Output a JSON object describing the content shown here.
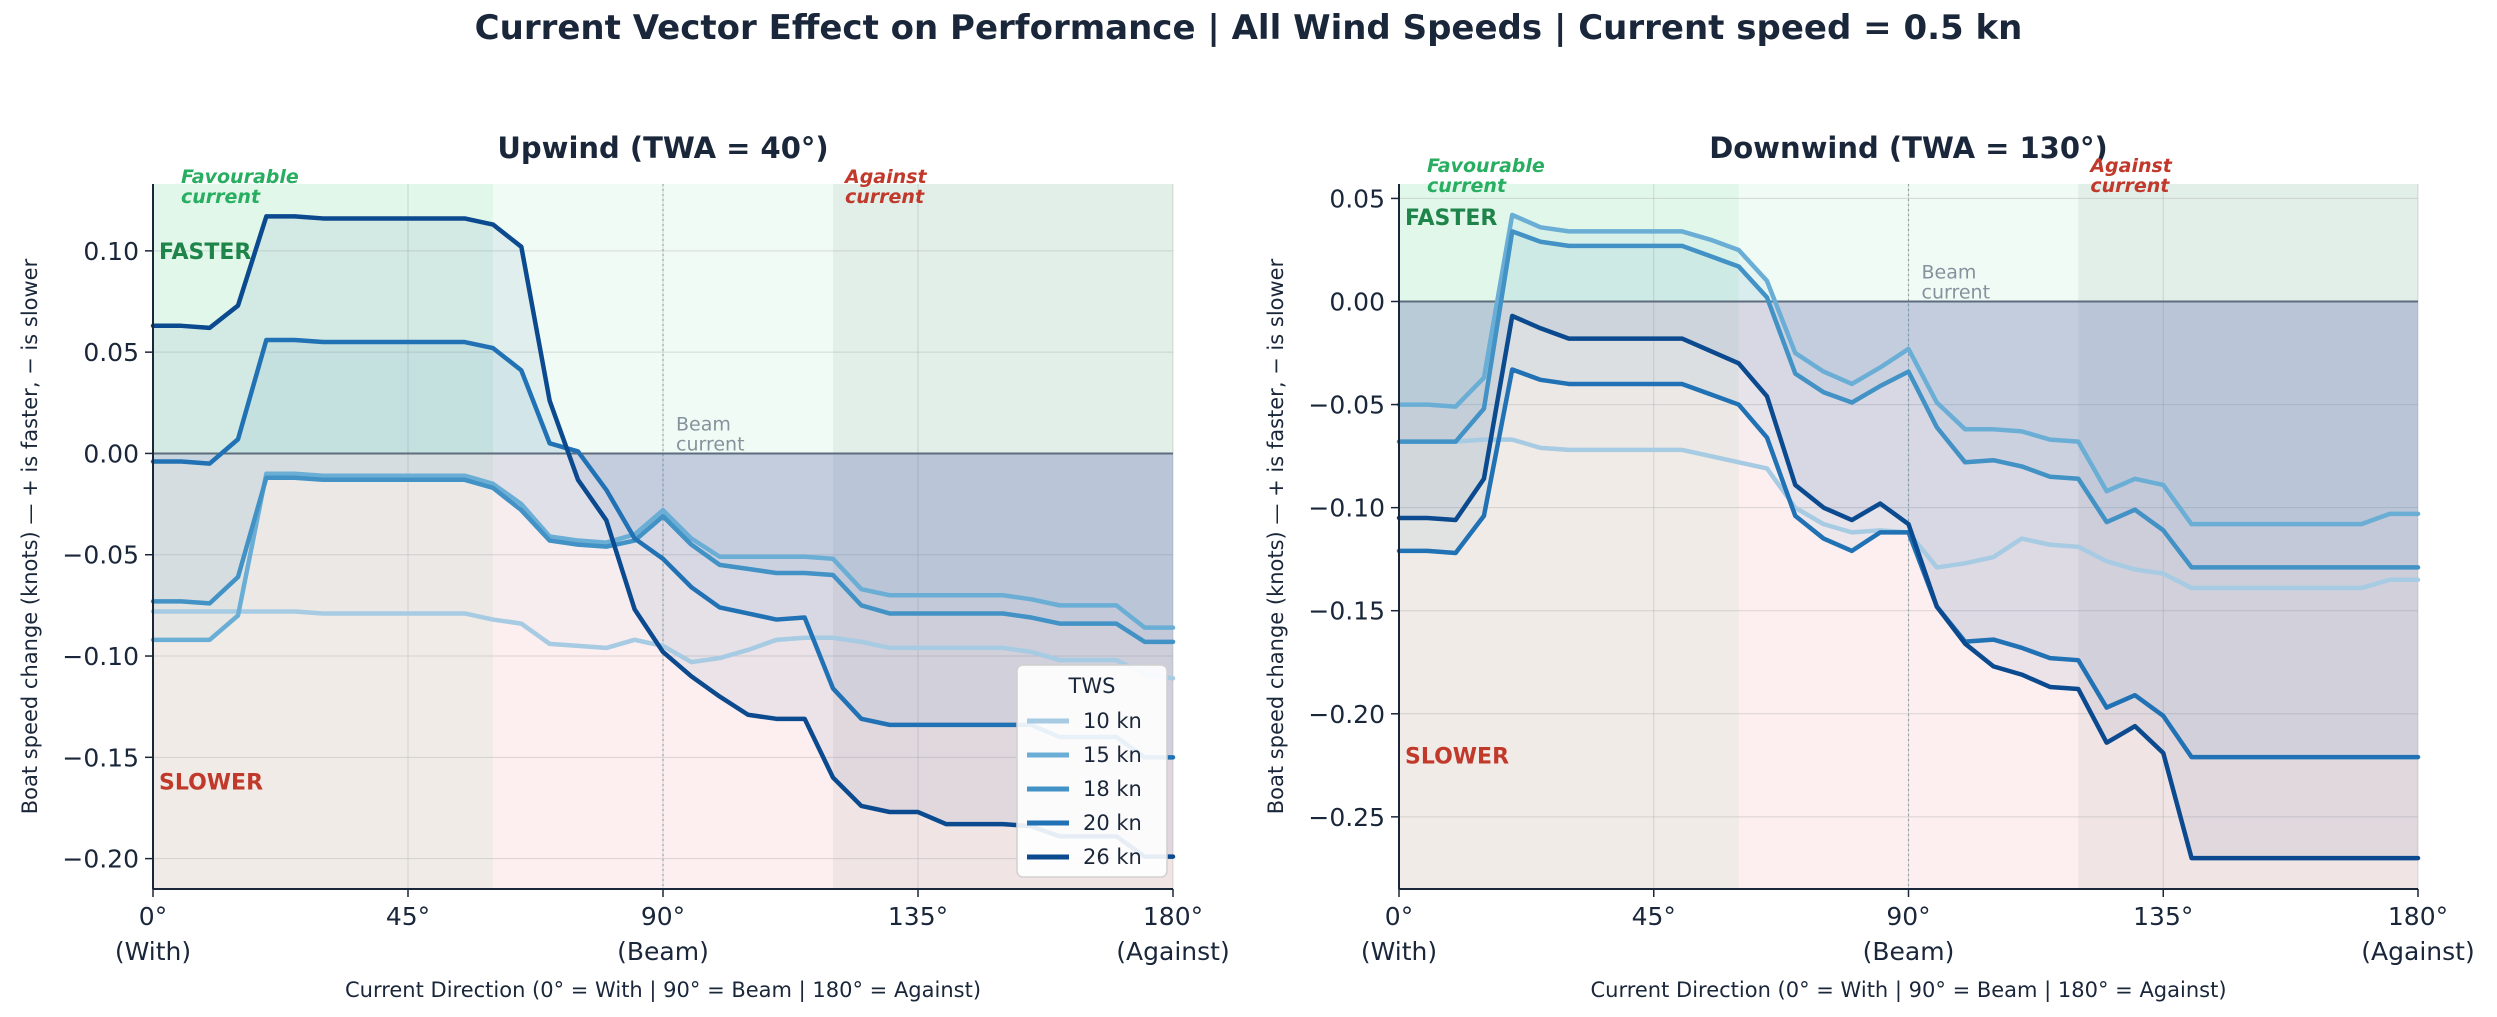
{
  "figure": {
    "title": "Current Vector Effect on Performance  |  All Wind Speeds  |  Current speed = 0.5 kn"
  },
  "colors": {
    "favourable_fill": "#2ecc71",
    "against_fill": "#95a5a6",
    "faster_band": "#2ecc71",
    "slower_band": "#f4a6a6",
    "negative_fill": "#1f4e8c",
    "faster_text": "#1e8449",
    "slower_text": "#c0392b",
    "favourable_text": "#27ae60",
    "against_text": "#c0392b",
    "zero_line": "#5d6d7e",
    "beam_text": "#85929e"
  },
  "chart_data": [
    {
      "type": "line",
      "title": "Upwind  (TWA = 40°)",
      "xlabel": "Current Direction  (0° = With  |  90° = Beam  |  180° = Against)",
      "ylabel": "Boat speed change (knots)  —  + is faster, − is slower",
      "xlim": [
        0,
        180
      ],
      "ylim": [
        -0.215,
        0.133
      ],
      "xticks": [
        0,
        45,
        90,
        135,
        180
      ],
      "xtick_labels": [
        [
          "0°",
          "(With)"
        ],
        [
          "45°",
          ""
        ],
        [
          "90°",
          "(Beam)"
        ],
        [
          "135°",
          ""
        ],
        [
          "180°",
          "(Against)"
        ]
      ],
      "yticks": [
        -0.2,
        -0.15,
        -0.1,
        -0.05,
        0.0,
        0.05,
        0.1
      ],
      "ytick_labels": [
        "−0.20",
        "−0.15",
        "−0.10",
        "−0.05",
        "0.00",
        "0.05",
        "0.10"
      ],
      "grid": true,
      "zones": {
        "favourable": [
          0,
          60
        ],
        "against": [
          120,
          180
        ]
      },
      "annotations": {
        "faster": "FASTER",
        "slower": "SLOWER",
        "favourable": [
          "Favourable",
          "current"
        ],
        "against": [
          "Against",
          "current"
        ],
        "beam": [
          "Beam",
          "current"
        ]
      },
      "legend": {
        "title": "TWS",
        "placement": "lower-right",
        "entries": [
          "10 kn",
          "15 kn",
          "18 kn",
          "20 kn",
          "26 kn"
        ]
      },
      "series": [
        {
          "name": "10 kn",
          "color": "#a6cbe3",
          "x": [
            0,
            5,
            10,
            15,
            20,
            25,
            30,
            35,
            40,
            45,
            50,
            55,
            60,
            65,
            70,
            75,
            80,
            85,
            90,
            95,
            100,
            105,
            110,
            115,
            120,
            125,
            130,
            135,
            140,
            145,
            150,
            155,
            160,
            165,
            170,
            175,
            180
          ],
          "values": [
            -0.078,
            -0.078,
            -0.078,
            -0.078,
            -0.078,
            -0.078,
            -0.079,
            -0.079,
            -0.079,
            -0.079,
            -0.079,
            -0.079,
            -0.082,
            -0.084,
            -0.094,
            -0.095,
            -0.096,
            -0.092,
            -0.095,
            -0.103,
            -0.101,
            -0.097,
            -0.092,
            -0.091,
            -0.091,
            -0.093,
            -0.096,
            -0.096,
            -0.096,
            -0.096,
            -0.096,
            -0.098,
            -0.102,
            -0.102,
            -0.102,
            -0.109,
            -0.111
          ]
        },
        {
          "name": "15 kn",
          "color": "#6aaed6",
          "x": [
            0,
            5,
            10,
            15,
            20,
            25,
            30,
            35,
            40,
            45,
            50,
            55,
            60,
            65,
            70,
            75,
            80,
            85,
            90,
            95,
            100,
            105,
            110,
            115,
            120,
            125,
            130,
            135,
            140,
            145,
            150,
            155,
            160,
            165,
            170,
            175,
            180
          ],
          "values": [
            -0.092,
            -0.092,
            -0.092,
            -0.08,
            -0.01,
            -0.01,
            -0.011,
            -0.011,
            -0.011,
            -0.011,
            -0.011,
            -0.011,
            -0.015,
            -0.025,
            -0.041,
            -0.043,
            -0.044,
            -0.04,
            -0.028,
            -0.042,
            -0.051,
            -0.051,
            -0.051,
            -0.051,
            -0.052,
            -0.067,
            -0.07,
            -0.07,
            -0.07,
            -0.07,
            -0.07,
            -0.072,
            -0.075,
            -0.075,
            -0.075,
            -0.086,
            -0.086
          ]
        },
        {
          "name": "18 kn",
          "color": "#4292c6",
          "x": [
            0,
            5,
            10,
            15,
            20,
            25,
            30,
            35,
            40,
            45,
            50,
            55,
            60,
            65,
            70,
            75,
            80,
            85,
            90,
            95,
            100,
            105,
            110,
            115,
            120,
            125,
            130,
            135,
            140,
            145,
            150,
            155,
            160,
            165,
            170,
            175,
            180
          ],
          "values": [
            -0.073,
            -0.073,
            -0.074,
            -0.061,
            -0.012,
            -0.012,
            -0.013,
            -0.013,
            -0.013,
            -0.013,
            -0.013,
            -0.013,
            -0.017,
            -0.028,
            -0.043,
            -0.045,
            -0.046,
            -0.043,
            -0.031,
            -0.045,
            -0.055,
            -0.057,
            -0.059,
            -0.059,
            -0.06,
            -0.075,
            -0.079,
            -0.079,
            -0.079,
            -0.079,
            -0.079,
            -0.081,
            -0.084,
            -0.084,
            -0.084,
            -0.093,
            -0.093
          ]
        },
        {
          "name": "20 kn",
          "color": "#2171b5",
          "x": [
            0,
            5,
            10,
            15,
            20,
            25,
            30,
            35,
            40,
            45,
            50,
            55,
            60,
            65,
            70,
            75,
            80,
            85,
            90,
            95,
            100,
            105,
            110,
            115,
            120,
            125,
            130,
            135,
            140,
            145,
            150,
            155,
            160,
            165,
            170,
            175,
            180
          ],
          "values": [
            -0.004,
            -0.004,
            -0.005,
            0.007,
            0.056,
            0.056,
            0.055,
            0.055,
            0.055,
            0.055,
            0.055,
            0.055,
            0.052,
            0.041,
            0.005,
            0.001,
            -0.018,
            -0.042,
            -0.052,
            -0.066,
            -0.076,
            -0.079,
            -0.082,
            -0.081,
            -0.116,
            -0.131,
            -0.134,
            -0.134,
            -0.134,
            -0.134,
            -0.134,
            -0.134,
            -0.14,
            -0.14,
            -0.14,
            -0.15,
            -0.15
          ]
        },
        {
          "name": "26 kn",
          "color": "#0b4a8f",
          "x": [
            0,
            5,
            10,
            15,
            20,
            25,
            30,
            35,
            40,
            45,
            50,
            55,
            60,
            65,
            70,
            75,
            80,
            85,
            90,
            95,
            100,
            105,
            110,
            115,
            120,
            125,
            130,
            135,
            140,
            145,
            150,
            155,
            160,
            165,
            170,
            175,
            180
          ],
          "values": [
            0.063,
            0.063,
            0.062,
            0.073,
            0.117,
            0.117,
            0.116,
            0.116,
            0.116,
            0.116,
            0.116,
            0.116,
            0.113,
            0.102,
            0.026,
            -0.013,
            -0.033,
            -0.077,
            -0.098,
            -0.11,
            -0.12,
            -0.129,
            -0.131,
            -0.131,
            -0.16,
            -0.174,
            -0.177,
            -0.177,
            -0.183,
            -0.183,
            -0.183,
            -0.184,
            -0.189,
            -0.189,
            -0.189,
            -0.199,
            -0.199
          ]
        }
      ]
    },
    {
      "type": "line",
      "title": "Downwind (TWA = 130°)",
      "xlabel": "Current Direction  (0° = With  |  90° = Beam  |  180° = Against)",
      "ylabel": "Boat speed change (knots)  —  + is faster, − is slower",
      "xlim": [
        0,
        180
      ],
      "ylim": [
        -0.285,
        0.057
      ],
      "xticks": [
        0,
        45,
        90,
        135,
        180
      ],
      "xtick_labels": [
        [
          "0°",
          "(With)"
        ],
        [
          "45°",
          ""
        ],
        [
          "90°",
          "(Beam)"
        ],
        [
          "135°",
          ""
        ],
        [
          "180°",
          "(Against)"
        ]
      ],
      "yticks": [
        -0.25,
        -0.2,
        -0.15,
        -0.1,
        -0.05,
        0.0,
        0.05
      ],
      "ytick_labels": [
        "−0.25",
        "−0.20",
        "−0.15",
        "−0.10",
        "−0.05",
        "0.00",
        "0.05"
      ],
      "grid": true,
      "zones": {
        "favourable": [
          0,
          60
        ],
        "against": [
          120,
          180
        ]
      },
      "annotations": {
        "faster": "FASTER",
        "slower": "SLOWER",
        "favourable": [
          "Favourable",
          "current"
        ],
        "against": [
          "Against",
          "current"
        ],
        "beam": [
          "Beam",
          "current"
        ]
      },
      "series": [
        {
          "name": "10 kn",
          "color": "#a6cbe3",
          "x": [
            0,
            5,
            10,
            15,
            20,
            25,
            30,
            35,
            40,
            45,
            50,
            55,
            60,
            65,
            70,
            75,
            80,
            85,
            90,
            95,
            100,
            105,
            110,
            115,
            120,
            125,
            130,
            135,
            140,
            145,
            150,
            155,
            160,
            165,
            170,
            175,
            180
          ],
          "values": [
            -0.068,
            -0.068,
            -0.068,
            -0.067,
            -0.067,
            -0.071,
            -0.072,
            -0.072,
            -0.072,
            -0.072,
            -0.072,
            -0.075,
            -0.078,
            -0.081,
            -0.1,
            -0.108,
            -0.112,
            -0.111,
            -0.112,
            -0.129,
            -0.127,
            -0.124,
            -0.115,
            -0.118,
            -0.119,
            -0.126,
            -0.13,
            -0.132,
            -0.139,
            -0.139,
            -0.139,
            -0.139,
            -0.139,
            -0.139,
            -0.139,
            -0.135,
            -0.135
          ]
        },
        {
          "name": "15 kn",
          "color": "#6aaed6",
          "x": [
            0,
            5,
            10,
            15,
            20,
            25,
            30,
            35,
            40,
            45,
            50,
            55,
            60,
            65,
            70,
            75,
            80,
            85,
            90,
            95,
            100,
            105,
            110,
            115,
            120,
            125,
            130,
            135,
            140,
            145,
            150,
            155,
            160,
            165,
            170,
            175,
            180
          ],
          "values": [
            -0.05,
            -0.05,
            -0.051,
            -0.037,
            0.042,
            0.036,
            0.034,
            0.034,
            0.034,
            0.034,
            0.034,
            0.03,
            0.025,
            0.01,
            -0.025,
            -0.034,
            -0.04,
            -0.032,
            -0.023,
            -0.049,
            -0.062,
            -0.062,
            -0.063,
            -0.067,
            -0.068,
            -0.092,
            -0.086,
            -0.089,
            -0.108,
            -0.108,
            -0.108,
            -0.108,
            -0.108,
            -0.108,
            -0.108,
            -0.103,
            -0.103
          ]
        },
        {
          "name": "18 kn",
          "color": "#4292c6",
          "x": [
            0,
            5,
            10,
            15,
            20,
            25,
            30,
            35,
            40,
            45,
            50,
            55,
            60,
            65,
            70,
            75,
            80,
            85,
            90,
            95,
            100,
            105,
            110,
            115,
            120,
            125,
            130,
            135,
            140,
            145,
            150,
            155,
            160,
            165,
            170,
            175,
            180
          ],
          "values": [
            -0.068,
            -0.068,
            -0.068,
            -0.052,
            0.034,
            0.029,
            0.027,
            0.027,
            0.027,
            0.027,
            0.027,
            0.022,
            0.017,
            0.002,
            -0.035,
            -0.044,
            -0.049,
            -0.041,
            -0.034,
            -0.061,
            -0.078,
            -0.077,
            -0.08,
            -0.085,
            -0.086,
            -0.107,
            -0.101,
            -0.111,
            -0.129,
            -0.129,
            -0.129,
            -0.129,
            -0.129,
            -0.129,
            -0.129,
            -0.129,
            -0.129
          ]
        },
        {
          "name": "20 kn",
          "color": "#2171b5",
          "x": [
            0,
            5,
            10,
            15,
            20,
            25,
            30,
            35,
            40,
            45,
            50,
            55,
            60,
            65,
            70,
            75,
            80,
            85,
            90,
            95,
            100,
            105,
            110,
            115,
            120,
            125,
            130,
            135,
            140,
            145,
            150,
            155,
            160,
            165,
            170,
            175,
            180
          ],
          "values": [
            -0.121,
            -0.121,
            -0.122,
            -0.104,
            -0.033,
            -0.038,
            -0.04,
            -0.04,
            -0.04,
            -0.04,
            -0.04,
            -0.045,
            -0.05,
            -0.066,
            -0.104,
            -0.115,
            -0.121,
            -0.112,
            -0.112,
            -0.148,
            -0.165,
            -0.164,
            -0.168,
            -0.173,
            -0.174,
            -0.197,
            -0.191,
            -0.201,
            -0.221,
            -0.221,
            -0.221,
            -0.221,
            -0.221,
            -0.221,
            -0.221,
            -0.221,
            -0.221
          ]
        },
        {
          "name": "26 kn",
          "color": "#0b4a8f",
          "x": [
            0,
            5,
            10,
            15,
            20,
            25,
            30,
            35,
            40,
            45,
            50,
            55,
            60,
            65,
            70,
            75,
            80,
            85,
            90,
            95,
            100,
            105,
            110,
            115,
            120,
            125,
            130,
            135,
            140,
            145,
            150,
            155,
            160,
            165,
            170,
            175,
            180
          ],
          "values": [
            -0.105,
            -0.105,
            -0.106,
            -0.086,
            -0.007,
            -0.013,
            -0.018,
            -0.018,
            -0.018,
            -0.018,
            -0.018,
            -0.024,
            -0.03,
            -0.046,
            -0.089,
            -0.1,
            -0.106,
            -0.098,
            -0.108,
            -0.148,
            -0.166,
            -0.177,
            -0.181,
            -0.187,
            -0.188,
            -0.214,
            -0.206,
            -0.219,
            -0.27,
            -0.27,
            -0.27,
            -0.27,
            -0.27,
            -0.27,
            -0.27,
            -0.27,
            -0.27
          ]
        }
      ]
    }
  ]
}
